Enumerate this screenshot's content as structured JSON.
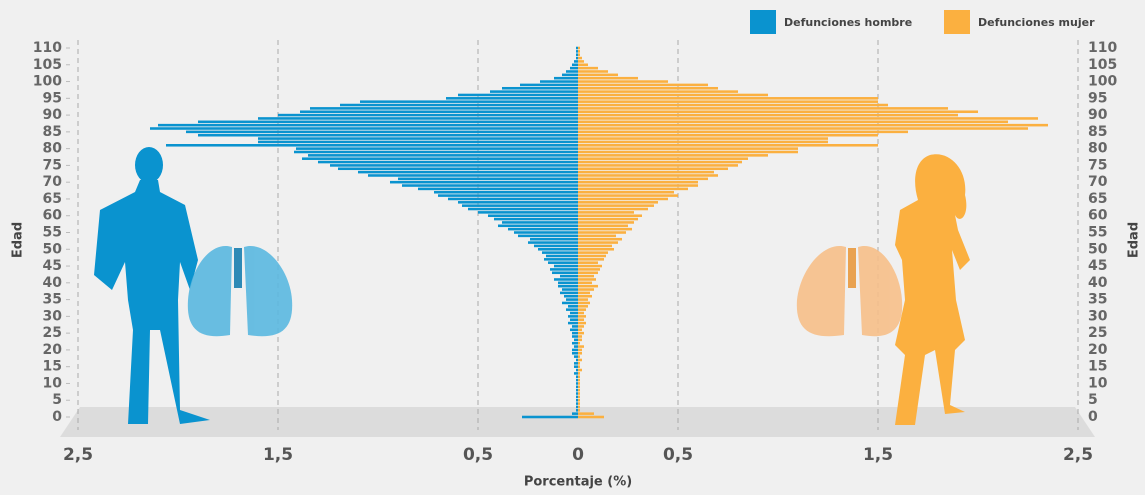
{
  "chart_data": {
    "type": "pyramid",
    "x_label": "Edad",
    "y_label": "Porcentaje (%)",
    "x": [
      0,
      1,
      2,
      3,
      4,
      5,
      6,
      7,
      8,
      9,
      10,
      11,
      12,
      13,
      14,
      15,
      16,
      17,
      18,
      19,
      20,
      21,
      22,
      23,
      24,
      25,
      26,
      27,
      28,
      29,
      30,
      31,
      32,
      33,
      34,
      35,
      36,
      37,
      38,
      39,
      40,
      41,
      42,
      43,
      44,
      45,
      46,
      47,
      48,
      49,
      50,
      51,
      52,
      53,
      54,
      55,
      56,
      57,
      58,
      59,
      60,
      61,
      62,
      63,
      64,
      65,
      66,
      67,
      68,
      69,
      70,
      71,
      72,
      73,
      74,
      75,
      76,
      77,
      78,
      79,
      80,
      81,
      82,
      83,
      84,
      85,
      86,
      87,
      88,
      89,
      90,
      91,
      92,
      93,
      94,
      95,
      96,
      97,
      98,
      99,
      100,
      101,
      102,
      103,
      104,
      105,
      106,
      107,
      108,
      109,
      110
    ],
    "xlim": [
      0,
      110
    ],
    "xticks": [
      0,
      5,
      10,
      15,
      20,
      25,
      30,
      35,
      40,
      45,
      50,
      55,
      60,
      65,
      70,
      75,
      80,
      85,
      90,
      95,
      100,
      105,
      110
    ],
    "ylim": [
      -2.5,
      2.5
    ],
    "yticks": [
      {
        "value": -2.5,
        "label": "2,5"
      },
      {
        "value": -1.5,
        "label": "1,5"
      },
      {
        "value": -0.5,
        "label": "0,5"
      },
      0,
      {
        "value": 0.5,
        "label": "0,5"
      },
      {
        "value": 1.5,
        "label": "1,5"
      },
      {
        "value": 2.5,
        "label": "2,5"
      }
    ],
    "grid": true,
    "legend": "top-right",
    "series": [
      {
        "name": "Defunciones hombre",
        "color": "#0a93cf",
        "values": [
          -0.28,
          -0.03,
          -0.01,
          -0.01,
          -0.01,
          -0.01,
          -0.01,
          -0.01,
          -0.01,
          -0.01,
          -0.01,
          -0.01,
          -0.01,
          -0.02,
          -0.01,
          -0.02,
          -0.02,
          -0.01,
          -0.02,
          -0.03,
          -0.03,
          -0.02,
          -0.03,
          -0.02,
          -0.03,
          -0.03,
          -0.04,
          -0.03,
          -0.05,
          -0.04,
          -0.05,
          -0.04,
          -0.06,
          -0.05,
          -0.08,
          -0.06,
          -0.07,
          -0.09,
          -0.08,
          -0.1,
          -0.1,
          -0.12,
          -0.09,
          -0.13,
          -0.14,
          -0.12,
          -0.15,
          -0.17,
          -0.16,
          -0.18,
          -0.2,
          -0.22,
          -0.25,
          -0.24,
          -0.3,
          -0.32,
          -0.35,
          -0.4,
          -0.38,
          -0.42,
          -0.45,
          -0.5,
          -0.55,
          -0.58,
          -0.6,
          -0.65,
          -0.7,
          -0.72,
          -0.8,
          -0.88,
          -0.94,
          -0.9,
          -1.05,
          -1.1,
          -1.2,
          -1.24,
          -1.3,
          -1.38,
          -1.35,
          -1.42,
          -1.41,
          -2.06,
          -1.6,
          -1.6,
          -1.9,
          -1.96,
          -2.14,
          -2.1,
          -1.9,
          -1.6,
          -1.5,
          -1.39,
          -1.34,
          -1.19,
          -1.09,
          -0.66,
          -0.6,
          -0.44,
          -0.38,
          -0.29,
          -0.19,
          -0.12,
          -0.08,
          -0.06,
          -0.04,
          -0.03,
          -0.02,
          -0.01,
          -0.01,
          -0.01,
          -0.01
        ]
      },
      {
        "name": "Defunciones mujer",
        "color": "#fbb040",
        "values": [
          0.13,
          0.08,
          0.01,
          0.01,
          0.01,
          0.01,
          0.01,
          0.01,
          0.01,
          0.01,
          0.01,
          0.01,
          0.01,
          0.01,
          0.02,
          0.01,
          0.01,
          0.02,
          0.01,
          0.02,
          0.02,
          0.03,
          0.01,
          0.02,
          0.02,
          0.03,
          0.02,
          0.03,
          0.04,
          0.03,
          0.04,
          0.03,
          0.04,
          0.05,
          0.06,
          0.05,
          0.07,
          0.06,
          0.08,
          0.1,
          0.07,
          0.09,
          0.08,
          0.1,
          0.11,
          0.12,
          0.1,
          0.13,
          0.14,
          0.15,
          0.18,
          0.17,
          0.2,
          0.22,
          0.19,
          0.24,
          0.27,
          0.25,
          0.28,
          0.3,
          0.32,
          0.28,
          0.35,
          0.38,
          0.4,
          0.45,
          0.5,
          0.48,
          0.55,
          0.6,
          0.6,
          0.65,
          0.7,
          0.68,
          0.75,
          0.8,
          0.82,
          0.85,
          0.95,
          1.1,
          1.1,
          1.5,
          1.25,
          1.25,
          1.5,
          1.65,
          2.25,
          2.35,
          2.15,
          2.3,
          1.9,
          2.0,
          1.85,
          1.55,
          1.5,
          1.5,
          0.95,
          0.8,
          0.7,
          0.65,
          0.45,
          0.3,
          0.2,
          0.15,
          0.1,
          0.05,
          0.03,
          0.02,
          0.01,
          0.01,
          0.01
        ]
      }
    ]
  }
}
